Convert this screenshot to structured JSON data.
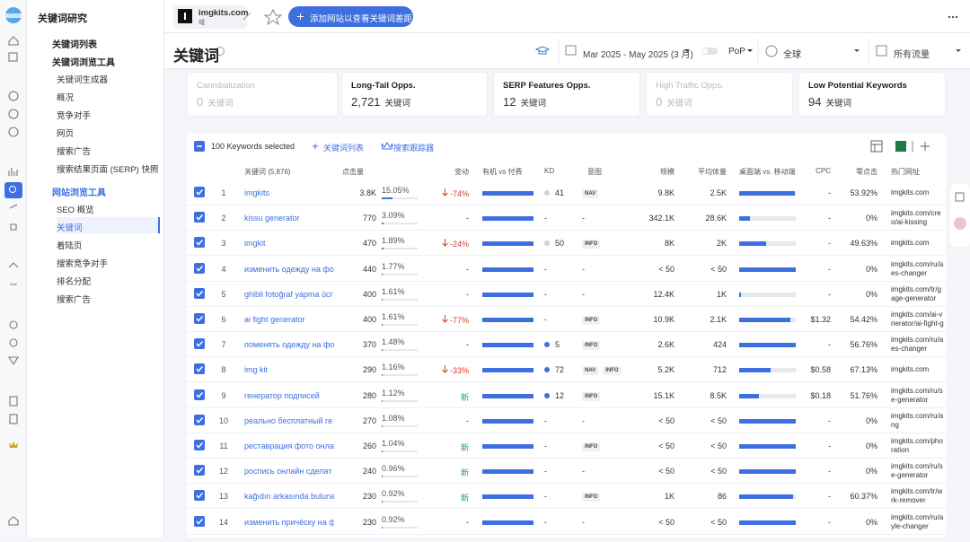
{
  "sidebar": {
    "title": "关键词研究",
    "list_link": "关键词列表",
    "groups": [
      {
        "label": "关键词浏览工具",
        "items": [
          "关键词生成器",
          "概况",
          "竞争对手",
          "网页",
          "搜索广告",
          "搜索结果页面 (SERP) 快照"
        ]
      },
      {
        "label": "网站浏览工具",
        "items": [
          "SEO 概览",
          "关键词",
          "着陆页",
          "搜索竞争对手",
          "排名分配",
          "搜索广告"
        ],
        "active_item": 1
      }
    ]
  },
  "topbar": {
    "site": "imgkits.com",
    "site_type": "域",
    "button": "添加网站以查看关键词差距"
  },
  "header": {
    "title": "关键词",
    "date_range": "Mar 2025 - May 2025 (3 月)",
    "compare": "PoP",
    "region": "全球",
    "traffic": "所有流量"
  },
  "cards": [
    {
      "title": "Cannibalization",
      "value": "0",
      "unit": "关键词",
      "muted": true
    },
    {
      "title": "Long-Tail Opps.",
      "value": "2,721",
      "unit": "关键词",
      "muted": false
    },
    {
      "title": "SERP Features Opps.",
      "value": "12",
      "unit": "关键词",
      "muted": false
    },
    {
      "title": "High Traffic Opps.",
      "value": "0",
      "unit": "关键词",
      "muted": true
    },
    {
      "title": "Low Potential Keywords",
      "value": "94",
      "unit": "关键词",
      "muted": false
    }
  ],
  "toolbar": {
    "selected": "100 Keywords selected",
    "list": "关键词列表",
    "tracker": "搜索跟踪器"
  },
  "table": {
    "columns": {
      "keyword": "关键词 (5,876)",
      "clicks": "点击量",
      "change": "变动",
      "organic": "有机 vs 付费",
      "kd": "KD",
      "intent": "意图",
      "volume": "规模",
      "avg": "平均体量",
      "device": "桌面端 vs. 移动端",
      "cpc": "CPC",
      "zero": "零点击",
      "url": "热门网址"
    },
    "rows": [
      {
        "n": "1",
        "keyword": "imgkits",
        "clicks": "3.8K",
        "share": 15.05,
        "share_label": "15.05%",
        "change": "-74%",
        "organic": 100,
        "kd": "41",
        "kd_color": "#c9d3e6",
        "intent": [
          "NAV"
        ],
        "volume": "9.8K",
        "avg": "2.5K",
        "desktop": 98,
        "cpc": "-",
        "zero": "53.92%",
        "url": [
          "imgkits.com"
        ]
      },
      {
        "n": "2",
        "keyword": "kissu generator",
        "clicks": "770",
        "share": 3.09,
        "share_label": "3.09%",
        "change": "-",
        "organic": 100,
        "kd": "-",
        "intent": "-",
        "volume": "342.1K",
        "avg": "28.6K",
        "desktop": 19,
        "cpc": "-",
        "zero": "0%",
        "url": [
          "imgkits.com/cre",
          "o/ai-kissing"
        ]
      },
      {
        "n": "3",
        "keyword": "imgkit",
        "clicks": "470",
        "share": 1.89,
        "share_label": "1.89%",
        "change": "-24%",
        "organic": 100,
        "kd": "50",
        "kd_color": "#c9d3e6",
        "intent": [
          "INFO"
        ],
        "volume": "8K",
        "avg": "2K",
        "desktop": 48,
        "cpc": "-",
        "zero": "49.63%",
        "url": [
          "imgkits.com"
        ]
      },
      {
        "n": "4",
        "keyword": "изменить одежду на фо",
        "clicks": "440",
        "share": 1.77,
        "share_label": "1.77%",
        "change": "-",
        "organic": 100,
        "kd": "-",
        "intent": "-",
        "volume": "< 50",
        "avg": "< 50",
        "desktop": 100,
        "cpc": "-",
        "zero": "0%",
        "url": [
          "imgkits.com/ru/a",
          "es-changer"
        ]
      },
      {
        "n": "5",
        "keyword": "ghibli fotoğraf yapma ücr",
        "clicks": "400",
        "share": 1.61,
        "share_label": "1.61%",
        "change": "-",
        "organic": 100,
        "kd": "-",
        "intent": "-",
        "volume": "12.4K",
        "avg": "1K",
        "desktop": 3,
        "cpc": "-",
        "zero": "0%",
        "url": [
          "imgkits.com/tr/g",
          "age-generator"
        ]
      },
      {
        "n": "6",
        "keyword": "ai fight generator",
        "clicks": "400",
        "share": 1.61,
        "share_label": "1.61%",
        "change": "-77%",
        "organic": 100,
        "kd": "-",
        "intent": [
          "INFO"
        ],
        "volume": "10.9K",
        "avg": "2.1K",
        "desktop": 90,
        "cpc": "$1.32",
        "zero": "54.42%",
        "url": [
          "imgkits.com/ai-v",
          "nerator/ai-fight-g"
        ]
      },
      {
        "n": "7",
        "keyword": "поменять одежду на фо",
        "clicks": "370",
        "share": 1.48,
        "share_label": "1.48%",
        "change": "-",
        "organic": 100,
        "kd": "5",
        "kd_color": "#3d6fe0",
        "intent": [
          "INFO"
        ],
        "volume": "2.6K",
        "avg": "424",
        "desktop": 100,
        "cpc": "-",
        "zero": "56.76%",
        "url": [
          "imgkits.com/ru/a",
          "es-changer"
        ]
      },
      {
        "n": "8",
        "keyword": "img kit",
        "clicks": "290",
        "share": 1.16,
        "share_label": "1.16%",
        "change": "-33%",
        "organic": 100,
        "kd": "72",
        "kd_color": "#3d6fe0",
        "intent": [
          "NAV",
          "INFO"
        ],
        "volume": "5.2K",
        "avg": "712",
        "desktop": 55,
        "cpc": "$0.58",
        "zero": "67.13%",
        "url": [
          "imgkits.com"
        ]
      },
      {
        "n": "9",
        "keyword": "генератор подписей",
        "clicks": "280",
        "share": 1.12,
        "share_label": "1.12%",
        "change": "新",
        "organic": 100,
        "kd": "12",
        "kd_color": "#3d6fe0",
        "intent": [
          "INFO"
        ],
        "volume": "15.1K",
        "avg": "8.5K",
        "desktop": 35,
        "cpc": "$0.18",
        "zero": "51.76%",
        "url": [
          "imgkits.com/ru/s",
          "e-generator"
        ]
      },
      {
        "n": "10",
        "keyword": "реально бесплатный ге",
        "clicks": "270",
        "share": 1.08,
        "share_label": "1.08%",
        "change": "-",
        "organic": 100,
        "kd": "-",
        "intent": "-",
        "volume": "< 50",
        "avg": "< 50",
        "desktop": 100,
        "cpc": "-",
        "zero": "0%",
        "url": [
          "imgkits.com/ru/a",
          "ng"
        ]
      },
      {
        "n": "11",
        "keyword": "реставрация фото онла",
        "clicks": "260",
        "share": 1.04,
        "share_label": "1.04%",
        "change": "新",
        "organic": 100,
        "kd": "-",
        "intent": [
          "INFO"
        ],
        "volume": "< 50",
        "avg": "< 50",
        "desktop": 100,
        "cpc": "-",
        "zero": "0%",
        "url": [
          "imgkits.com/pho",
          "ration"
        ]
      },
      {
        "n": "12",
        "keyword": "роспись онлайн сделат",
        "clicks": "240",
        "share": 0.96,
        "share_label": "0.96%",
        "change": "新",
        "organic": 100,
        "kd": "-",
        "intent": "-",
        "volume": "< 50",
        "avg": "< 50",
        "desktop": 100,
        "cpc": "-",
        "zero": "0%",
        "url": [
          "imgkits.com/ru/s",
          "e-generator"
        ]
      },
      {
        "n": "13",
        "keyword": "kağıdın arkasında bulunan",
        "clicks": "230",
        "share": 0.92,
        "share_label": "0.92%",
        "change": "新",
        "organic": 100,
        "kd": "-",
        "intent": [
          "INFO"
        ],
        "volume": "1K",
        "avg": "86",
        "desktop": 95,
        "cpc": "-",
        "zero": "60.37%",
        "url": [
          "imgkits.com/tr/w",
          "rk-remover"
        ]
      },
      {
        "n": "14",
        "keyword": "изменить причёску на ф",
        "clicks": "230",
        "share": 0.92,
        "share_label": "0.92%",
        "change": "-",
        "organic": 100,
        "kd": "-",
        "intent": "-",
        "volume": "< 50",
        "avg": "< 50",
        "desktop": 100,
        "cpc": "-",
        "zero": "0%",
        "url": [
          "imgkits.com/ru/a",
          "yle-changer"
        ]
      }
    ]
  }
}
